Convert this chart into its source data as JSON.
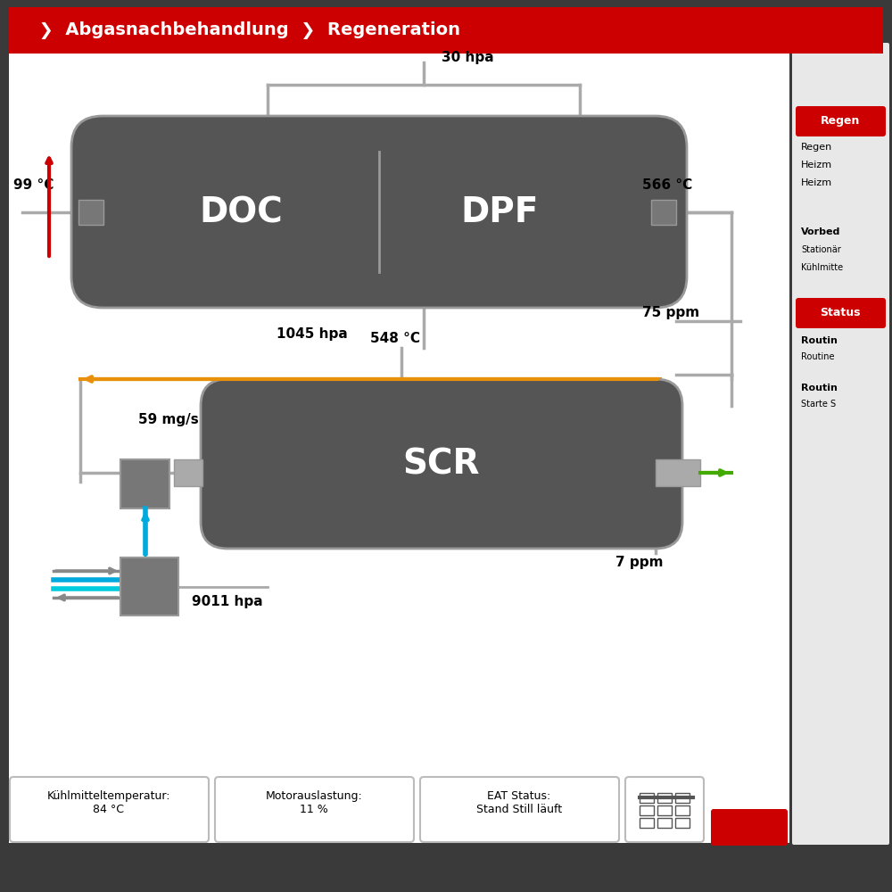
{
  "bg_color": "#ffffff",
  "dark_bg": "#3a3a3a",
  "header_red": "#cc0000",
  "header_text": "  ❯  Abgasnachbehandlung  ❯  Regeneration",
  "component_color": "#555555",
  "component_text_color": "#ffffff",
  "doc_label": "DOC",
  "dpf_label": "DPF",
  "scr_label": "SCR",
  "pipe_color": "#aaaaaa",
  "arrow_orange": "#e8900a",
  "arrow_green": "#44aa00",
  "arrow_red": "#cc0000",
  "arrow_blue": "#00aadd",
  "arrow_dark_cyan": "#008899",
  "arrow_gray": "#888888",
  "connector_color": "#999999",
  "connector_dark": "#777777",
  "values": {
    "top_pressure": "30 hpa",
    "left_temp": "99 °C",
    "right_temp": "566 °C",
    "mid_pressure": "1045 hpa",
    "mid_ppm": "75 ppm",
    "scr_top_temp": "548 °C",
    "scr_left_mg": "59 mg/s",
    "scr_bottom_ppm": "7 ppm",
    "bottom_pressure": "9011 hpa",
    "coolant_temp": "Kühlmitteltemperatur:\n84 °C",
    "motor_load": "Motorauslastung:\n11 %",
    "eat_status": "EAT Status:\nStand Still läuft"
  },
  "right_panel": {
    "regen_title": "Regen",
    "regen_label1": "Regen",
    "heizm_label1": "Heizm",
    "heizm_label2": "Heizm",
    "vorbed_title": "Vorbed",
    "stationar": "Stationär",
    "kuhlmitte": "Kühlmitte",
    "status_title": "Status",
    "routin1": "Routin",
    "routine1_sub": "Routine",
    "routin2": "Routin",
    "routine2_sub": "Starte S"
  }
}
